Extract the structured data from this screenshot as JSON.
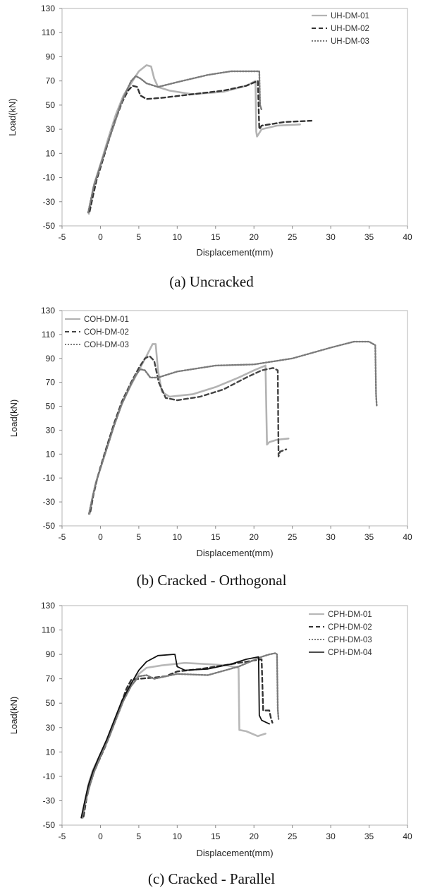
{
  "chart_data": [
    {
      "type": "line",
      "caption": "(a)  Uncracked",
      "xlabel": "Displacement(mm)",
      "ylabel": "Load(kN)",
      "xlim": [
        -5,
        40
      ],
      "ylim": [
        -50,
        130
      ],
      "xticks": [
        -5,
        0,
        5,
        10,
        15,
        20,
        25,
        30,
        35,
        40
      ],
      "yticks": [
        -50,
        -30,
        -10,
        10,
        30,
        50,
        70,
        90,
        110,
        130
      ],
      "grid": false,
      "legend": "top-right",
      "series": [
        {
          "name": "UH-DM-01",
          "color": "#b3b3b3",
          "dash": "solid",
          "width": 2.6,
          "points": [
            [
              -1.5,
              -40
            ],
            [
              -1.2,
              -28
            ],
            [
              -0.8,
              -15
            ],
            [
              -0.3,
              -5
            ],
            [
              0.2,
              5
            ],
            [
              1,
              22
            ],
            [
              2,
              42
            ],
            [
              3,
              58
            ],
            [
              4,
              68
            ],
            [
              5,
              78
            ],
            [
              6,
              83
            ],
            [
              6.6,
              82
            ],
            [
              7,
              72
            ],
            [
              7.5,
              65
            ],
            [
              9,
              62
            ],
            [
              12,
              59
            ],
            [
              16,
              61
            ],
            [
              19,
              66
            ],
            [
              20.2,
              70
            ],
            [
              20.3,
              28
            ],
            [
              20.4,
              24
            ],
            [
              21,
              30
            ],
            [
              23,
              33
            ],
            [
              26,
              34
            ]
          ]
        },
        {
          "name": "UH-DM-02",
          "color": "#333333",
          "dash": "6,4",
          "width": 2.4,
          "points": [
            [
              -1.4,
              -38
            ],
            [
              -1,
              -26
            ],
            [
              -0.5,
              -12
            ],
            [
              0,
              -2
            ],
            [
              0.8,
              15
            ],
            [
              1.8,
              35
            ],
            [
              2.8,
              52
            ],
            [
              3.6,
              62
            ],
            [
              4.2,
              66
            ],
            [
              4.8,
              65
            ],
            [
              5.2,
              58
            ],
            [
              6,
              55
            ],
            [
              8,
              56
            ],
            [
              12,
              59
            ],
            [
              16,
              62
            ],
            [
              19,
              66
            ],
            [
              20.5,
              70
            ],
            [
              20.7,
              30
            ],
            [
              21,
              33
            ],
            [
              24,
              36
            ],
            [
              27.5,
              37
            ]
          ]
        },
        {
          "name": "UH-DM-03",
          "color": "#7a7a7a",
          "dash": "2,2",
          "width": 2.4,
          "points": [
            [
              -1.6,
              -39
            ],
            [
              -1.3,
              -30
            ],
            [
              -0.9,
              -18
            ],
            [
              -0.4,
              -8
            ],
            [
              0,
              0
            ],
            [
              0.8,
              16
            ],
            [
              1.8,
              34
            ],
            [
              2.6,
              50
            ],
            [
              3.4,
              62
            ],
            [
              4,
              70
            ],
            [
              4.6,
              74
            ],
            [
              5.2,
              72
            ],
            [
              6,
              68
            ],
            [
              7.5,
              65
            ],
            [
              10,
              69
            ],
            [
              14,
              75
            ],
            [
              17,
              78
            ],
            [
              19,
              78
            ],
            [
              20.7,
              78
            ],
            [
              20.8,
              50
            ],
            [
              21,
              46
            ]
          ]
        }
      ]
    },
    {
      "type": "line",
      "caption": "(b)  Cracked  -  Orthogonal",
      "xlabel": "Displacement(mm)",
      "ylabel": "Load(kN)",
      "xlim": [
        -5,
        40
      ],
      "ylim": [
        -50,
        130
      ],
      "xticks": [
        -5,
        0,
        5,
        10,
        15,
        20,
        25,
        30,
        35,
        40
      ],
      "yticks": [
        -50,
        -30,
        -10,
        10,
        30,
        50,
        70,
        90,
        110,
        130
      ],
      "grid": false,
      "legend": "top-left",
      "series": [
        {
          "name": "COH-DM-01",
          "color": "#b3b3b3",
          "dash": "solid",
          "width": 2.6,
          "points": [
            [
              -1.4,
              -40
            ],
            [
              -1,
              -25
            ],
            [
              -0.5,
              -12
            ],
            [
              0,
              -2
            ],
            [
              0.8,
              15
            ],
            [
              1.8,
              35
            ],
            [
              2.8,
              52
            ],
            [
              4,
              68
            ],
            [
              5,
              80
            ],
            [
              6,
              92
            ],
            [
              6.8,
              102
            ],
            [
              7.2,
              102
            ],
            [
              7.5,
              80
            ],
            [
              8,
              62
            ],
            [
              9,
              58
            ],
            [
              12,
              60
            ],
            [
              15,
              66
            ],
            [
              18,
              74
            ],
            [
              20,
              80
            ],
            [
              21.5,
              84
            ],
            [
              21.7,
              18
            ],
            [
              22,
              20
            ],
            [
              23,
              22
            ],
            [
              24.5,
              23
            ]
          ]
        },
        {
          "name": "COH-DM-02",
          "color": "#444444",
          "dash": "6,4",
          "width": 2.4,
          "points": [
            [
              -1.3,
              -38
            ],
            [
              -0.9,
              -24
            ],
            [
              -0.4,
              -10
            ],
            [
              0,
              -1
            ],
            [
              0.8,
              16
            ],
            [
              1.8,
              36
            ],
            [
              2.8,
              54
            ],
            [
              4,
              70
            ],
            [
              5,
              82
            ],
            [
              5.8,
              90
            ],
            [
              6.4,
              92
            ],
            [
              7,
              88
            ],
            [
              7.6,
              70
            ],
            [
              8.5,
              57
            ],
            [
              10,
              55
            ],
            [
              13,
              58
            ],
            [
              16,
              64
            ],
            [
              19,
              74
            ],
            [
              21,
              80
            ],
            [
              22.5,
              82
            ],
            [
              23.1,
              80
            ],
            [
              23.2,
              8
            ],
            [
              23.4,
              12
            ],
            [
              24.2,
              14
            ]
          ]
        },
        {
          "name": "COH-DM-03",
          "color": "#7a7a7a",
          "dash": "2,2",
          "width": 2.4,
          "points": [
            [
              -1.5,
              -40
            ],
            [
              -1.1,
              -28
            ],
            [
              -0.6,
              -14
            ],
            [
              0,
              -2
            ],
            [
              0.8,
              14
            ],
            [
              1.8,
              34
            ],
            [
              2.8,
              52
            ],
            [
              3.8,
              66
            ],
            [
              4.6,
              76
            ],
            [
              5.2,
              81
            ],
            [
              5.8,
              80
            ],
            [
              6.5,
              74
            ],
            [
              7.5,
              74
            ],
            [
              10,
              79
            ],
            [
              15,
              84
            ],
            [
              20,
              85
            ],
            [
              25,
              90
            ],
            [
              30,
              99
            ],
            [
              33,
              104
            ],
            [
              35,
              104
            ],
            [
              35.8,
              101
            ],
            [
              35.9,
              60
            ],
            [
              36,
              50
            ]
          ]
        }
      ]
    },
    {
      "type": "line",
      "caption": "(c)  Cracked  -  Parallel",
      "xlabel": "Displacement(mm)",
      "ylabel": "Load(kN)",
      "xlim": [
        -5,
        40
      ],
      "ylim": [
        -50,
        130
      ],
      "xticks": [
        -5,
        0,
        5,
        10,
        15,
        20,
        25,
        30,
        35,
        40
      ],
      "yticks": [
        -50,
        -30,
        -10,
        10,
        30,
        50,
        70,
        90,
        110,
        130
      ],
      "grid": false,
      "legend": "top-right",
      "series": [
        {
          "name": "CPH-DM-01",
          "color": "#b8b8b8",
          "dash": "solid",
          "width": 2.6,
          "points": [
            [
              -2.3,
              -44
            ],
            [
              -2,
              -30
            ],
            [
              -1.5,
              -15
            ],
            [
              -1,
              -5
            ],
            [
              0,
              8
            ],
            [
              1,
              22
            ],
            [
              2,
              38
            ],
            [
              3,
              54
            ],
            [
              4,
              66
            ],
            [
              5,
              74
            ],
            [
              6,
              79
            ],
            [
              8,
              81
            ],
            [
              11,
              83
            ],
            [
              14,
              82
            ],
            [
              16.5,
              81
            ],
            [
              18,
              79
            ],
            [
              18.1,
              28
            ],
            [
              19,
              27
            ],
            [
              20.5,
              23
            ],
            [
              21.5,
              25
            ]
          ]
        },
        {
          "name": "CPH-DM-02",
          "color": "#333333",
          "dash": "6,4",
          "width": 2.4,
          "points": [
            [
              -2.2,
              -43
            ],
            [
              -1.8,
              -28
            ],
            [
              -1.2,
              -12
            ],
            [
              -0.4,
              0
            ],
            [
              0.6,
              14
            ],
            [
              1.6,
              30
            ],
            [
              2.6,
              48
            ],
            [
              3.4,
              62
            ],
            [
              4,
              69
            ],
            [
              5,
              70
            ],
            [
              7,
              71
            ],
            [
              8.5,
              72
            ],
            [
              10,
              76
            ],
            [
              13,
              78
            ],
            [
              16,
              81
            ],
            [
              19,
              84
            ],
            [
              21,
              86
            ],
            [
              21.2,
              44
            ],
            [
              22,
              44
            ],
            [
              22.2,
              38
            ],
            [
              22.4,
              34
            ]
          ]
        },
        {
          "name": "CPH-DM-03",
          "color": "#7a7a7a",
          "dash": "2,2",
          "width": 2.4,
          "points": [
            [
              -2.4,
              -44
            ],
            [
              -2,
              -32
            ],
            [
              -1.4,
              -18
            ],
            [
              -0.8,
              -6
            ],
            [
              0,
              6
            ],
            [
              1,
              20
            ],
            [
              2,
              36
            ],
            [
              3,
              52
            ],
            [
              4,
              64
            ],
            [
              5,
              72
            ],
            [
              6,
              73
            ],
            [
              7,
              70
            ],
            [
              10,
              74
            ],
            [
              14,
              73
            ],
            [
              18,
              80
            ],
            [
              21,
              88
            ],
            [
              22,
              90
            ],
            [
              22.8,
              91
            ],
            [
              23,
              90
            ],
            [
              23.1,
              45
            ],
            [
              23.2,
              37
            ]
          ]
        },
        {
          "name": "CPH-DM-04",
          "color": "#111111",
          "dash": "solid",
          "width": 1.8,
          "points": [
            [
              -2.5,
              -44
            ],
            [
              -2.1,
              -32
            ],
            [
              -1.6,
              -18
            ],
            [
              -1,
              -6
            ],
            [
              -0.2,
              6
            ],
            [
              0.8,
              20
            ],
            [
              1.8,
              36
            ],
            [
              2.8,
              52
            ],
            [
              4,
              66
            ],
            [
              5,
              77
            ],
            [
              6,
              84
            ],
            [
              7.5,
              89
            ],
            [
              9.5,
              90
            ],
            [
              9.7,
              90
            ],
            [
              10,
              80
            ],
            [
              11,
              77
            ],
            [
              14,
              78
            ],
            [
              17,
              82
            ],
            [
              19,
              86
            ],
            [
              20.6,
              88
            ],
            [
              20.7,
              40
            ],
            [
              21,
              36
            ],
            [
              22,
              33
            ]
          ]
        }
      ]
    }
  ]
}
